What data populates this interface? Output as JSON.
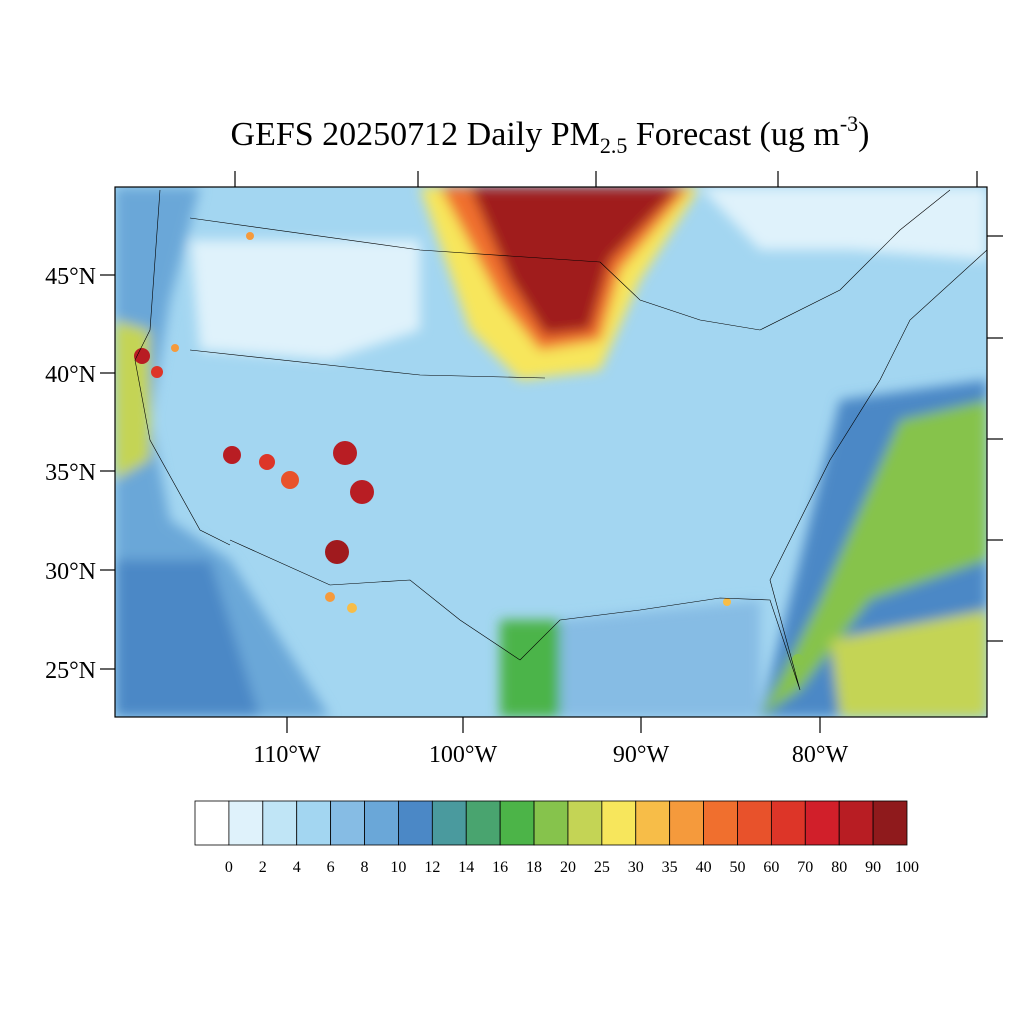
{
  "title": {
    "main": "GEFS 20250712 Daily PM",
    "subscript": "2.5",
    "middle": " Forecast (ug m",
    "superscript": "-3",
    "end": ")"
  },
  "lat_labels": [
    "45°N",
    "40°N",
    "35°N",
    "30°N",
    "25°N"
  ],
  "lon_labels": [
    "110°W",
    "100°W",
    "90°W",
    "80°W"
  ],
  "colorbar": {
    "levels": [
      "0",
      "2",
      "4",
      "6",
      "8",
      "10",
      "12",
      "14",
      "16",
      "18",
      "20",
      "25",
      "30",
      "35",
      "40",
      "50",
      "60",
      "70",
      "80",
      "90",
      "100"
    ],
    "colors": [
      "#ffffff",
      "#dff2fb",
      "#c0e5f6",
      "#a3d6f1",
      "#86bce4",
      "#6aa7d8",
      "#4b88c6",
      "#4a9a9e",
      "#49a46f",
      "#4cb448",
      "#86c34c",
      "#c4d455",
      "#f7e65c",
      "#f7bd48",
      "#f59a3c",
      "#f06f2e",
      "#e8522b",
      "#dd3528",
      "#d11f2a",
      "#b81d23",
      "#8f1a1c"
    ]
  }
}
